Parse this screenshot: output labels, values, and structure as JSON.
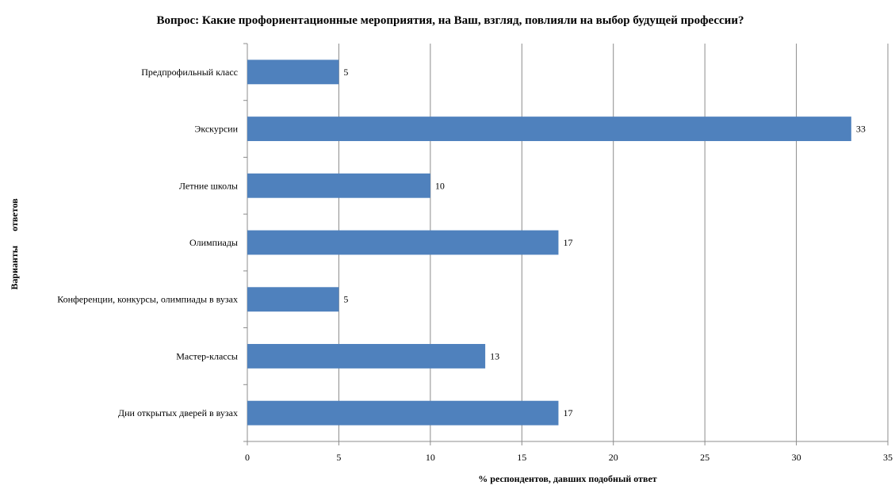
{
  "chart_data": {
    "type": "bar",
    "orientation": "horizontal",
    "title": "Вопрос: Какие профориентационные мероприятия, на Ваш, взгляд, повлияли на выбор будущей профессии?",
    "xlabel": "% респондентов, давших подобный ответ",
    "ylabel": "Варианты      ответов",
    "categories": [
      "Предпрофильный класс",
      "Экскурсии",
      "Летние школы",
      "Олимпиады",
      "Конференции, конкурсы, олимпиады в вузах",
      "Мастер-классы",
      "Дни открытых дверей в вузах"
    ],
    "values": [
      5,
      33,
      10,
      17,
      5,
      13,
      17
    ],
    "xlim": [
      0,
      35
    ],
    "xticks": [
      0,
      5,
      10,
      15,
      20,
      25,
      30,
      35
    ],
    "grid": "vertical",
    "legend": "none",
    "bar_color": "#4f81bd"
  }
}
